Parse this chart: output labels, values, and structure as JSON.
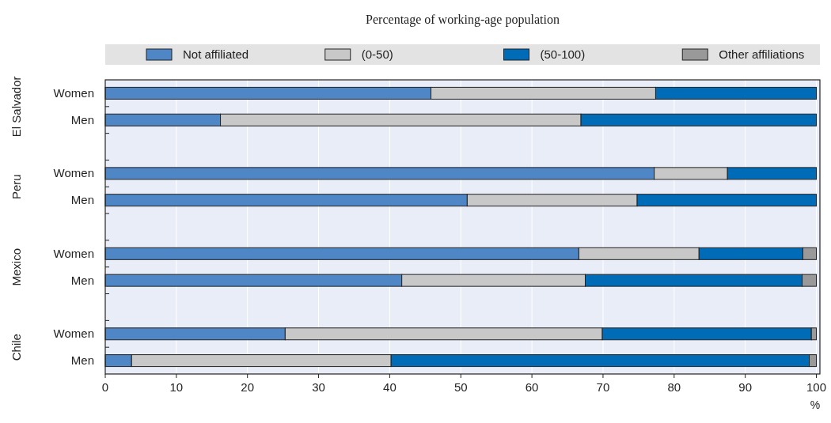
{
  "chart_data": {
    "type": "bar",
    "orientation": "horizontal",
    "stacked": true,
    "title": "Percentage of working-age population",
    "xlabel": "%",
    "categories": [
      "Women",
      "Men",
      "Women",
      "Men",
      "Women",
      "Men",
      "Women",
      "Men"
    ],
    "annotations": [
      "El Salvador",
      "Peru",
      "Mexico",
      "Chile"
    ],
    "series": [
      {
        "name": "Not affiliated",
        "color": "#4f86c6",
        "values": [
          45.8,
          16.2,
          77.2,
          50.9,
          66.6,
          41.7,
          25.3,
          3.7
        ]
      },
      {
        "name": "(0-50)",
        "color": "#c8c8c8",
        "values": [
          31.6,
          50.7,
          10.3,
          23.9,
          16.9,
          25.8,
          44.6,
          36.5
        ]
      },
      {
        "name": "(50-100)",
        "color": "#006bb6",
        "values": [
          22.6,
          33.1,
          12.5,
          25.2,
          14.6,
          30.5,
          29.4,
          58.8
        ]
      },
      {
        "name": "Other affiliations",
        "color": "#999999",
        "values": [
          0,
          0,
          0,
          0,
          1.9,
          2.0,
          0.7,
          1.0
        ]
      }
    ],
    "xlim": [
      0,
      100.5
    ],
    "xticks": [
      0,
      10,
      20,
      30,
      40,
      50,
      60,
      70,
      80,
      90,
      100
    ],
    "grid": "x",
    "legend": "top"
  }
}
